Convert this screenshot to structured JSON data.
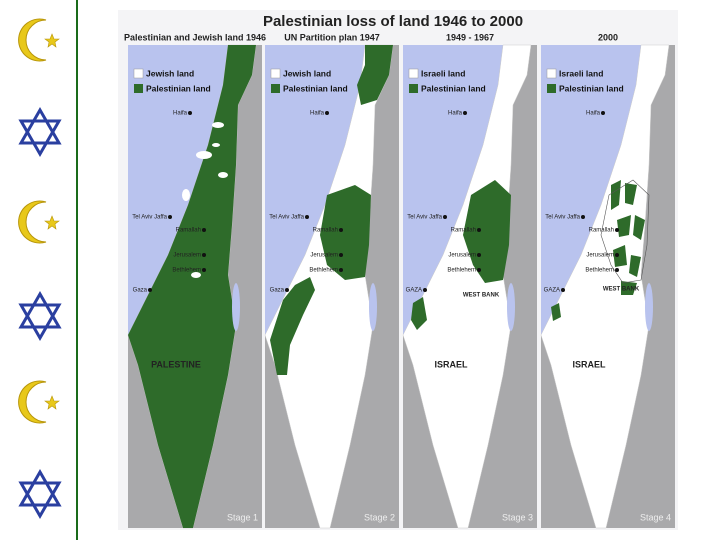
{
  "title": "Palestinian loss of land 1946 to 2000",
  "panels": [
    {
      "header": "Palestinian and Jewish land 1946",
      "legend": [
        "Jewish land",
        "Palestinian land"
      ],
      "places": [
        "Haifa",
        "Tel Aviv Jaffa",
        "Ramallah",
        "Jerusalem",
        "Bethlehem",
        "Gaza"
      ],
      "regions": [
        "PALESTINE"
      ],
      "stage": "Stage 1"
    },
    {
      "header": "UN Partition plan 1947",
      "legend": [
        "Jewish land",
        "Palestinian land"
      ],
      "places": [
        "Haifa",
        "Tel Aviv Jaffa",
        "Ramallah",
        "Jerusalem",
        "Bethlehem",
        "Gaza"
      ],
      "regions": [],
      "stage": "Stage 2"
    },
    {
      "header": "1949 - 1967",
      "legend": [
        "Israeli land",
        "Palestinian land"
      ],
      "places": [
        "Haifa",
        "Tel Aviv Jaffa",
        "Ramallah",
        "Jerusalem",
        "Bethlehem",
        "GAZA"
      ],
      "regions": [
        "WEST BANK",
        "ISRAEL"
      ],
      "stage": "Stage 3"
    },
    {
      "header": "2000",
      "legend": [
        "Israeli land",
        "Palestinian land"
      ],
      "places": [
        "Haifa",
        "Tel Aviv Jaffa",
        "Ramallah",
        "Jerusalem",
        "Bethlehem",
        "GAZA"
      ],
      "regions": [
        "WEST BANK",
        "ISRAEL"
      ],
      "stage": "Stage 4"
    }
  ]
}
